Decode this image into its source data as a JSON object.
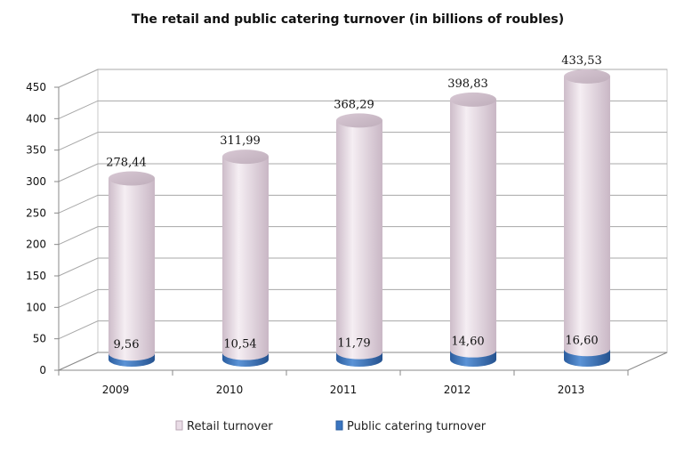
{
  "chart_data": {
    "type": "bar",
    "title": "The retail and public catering turnover (in billions of roubles)",
    "xlabel": "",
    "ylabel": "",
    "categories": [
      "2009",
      "2010",
      "2011",
      "2012",
      "2013"
    ],
    "ylim": [
      0,
      450
    ],
    "yticks": [
      "0",
      "50",
      "100",
      "150",
      "200",
      "250",
      "300",
      "350",
      "400",
      "450"
    ],
    "grid": true,
    "legend_position": "bottom",
    "style": "3d-cylinder",
    "series": [
      {
        "name": "Retail turnover",
        "values": [
          278.44,
          311.99,
          368.29,
          398.83,
          433.53
        ],
        "labels": [
          "278,44",
          "311,99",
          "368,29",
          "398,83",
          "433,53"
        ],
        "color": "#e9dce6"
      },
      {
        "name": "Public catering turnover",
        "values": [
          9.56,
          10.54,
          11.79,
          14.6,
          16.6
        ],
        "labels": [
          "9,56",
          "10,54",
          "11,79",
          "14,60",
          "16,60"
        ],
        "color": "#3a75c0"
      }
    ]
  }
}
